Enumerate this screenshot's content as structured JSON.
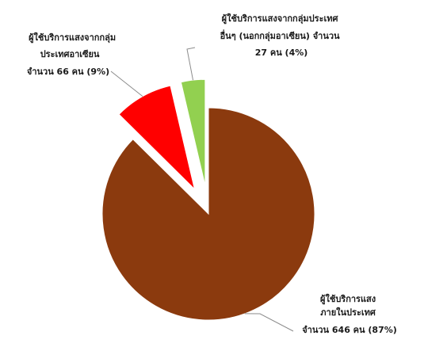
{
  "chart_data": {
    "type": "pie",
    "exploded": true,
    "slices": [
      {
        "name": "ผู้ใช้บริการแสงภายในประเทศ",
        "value": 646,
        "percent": 87,
        "color": "#8B3A0E",
        "label_lines": [
          "ผู้ใช้บริการแสง",
          "ภายในประเทศ",
          "จำนวน 646 คน (87%)"
        ]
      },
      {
        "name": "ผู้ใช้บริการแสงจากกลุ่มประเทศอาเซียน",
        "value": 66,
        "percent": 9,
        "color": "#FF0000",
        "label_lines": [
          "ผู้ใช้บริการแสงจากกลุ่ม",
          "ประเทศอาเซียน",
          "จำนวน 66 คน (9%)"
        ]
      },
      {
        "name": "ผู้ใช้บริการแสงจากกลุ่มประเทศอื่นๆ (นอกกลุ่มอาเซียน)",
        "value": 27,
        "percent": 4,
        "color": "#92D050",
        "label_lines": [
          "ผู้ใช้บริการแสงจากกลุ่มประเทศ",
          "อื่นๆ (นอกกลุ่มอาเซียน) จำนวน",
          "27 คน (4%)"
        ]
      }
    ]
  }
}
